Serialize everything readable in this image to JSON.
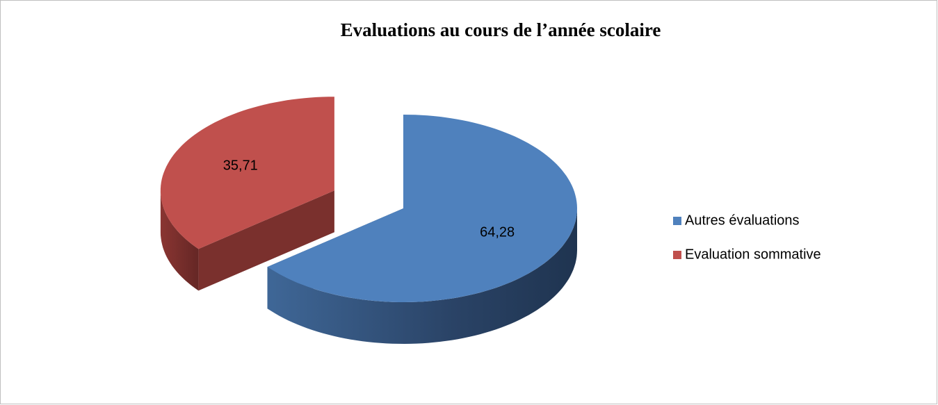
{
  "chart_data": {
    "type": "pie",
    "title": "Evaluations au cours de l’année scolaire",
    "categories": [
      "Autres évaluations",
      "Evaluation sommative"
    ],
    "values": [
      64.28,
      35.71
    ],
    "value_labels": [
      "64,28",
      "35,71"
    ],
    "colors": [
      "#4f81bd",
      "#c0504d"
    ],
    "legend": "right"
  }
}
